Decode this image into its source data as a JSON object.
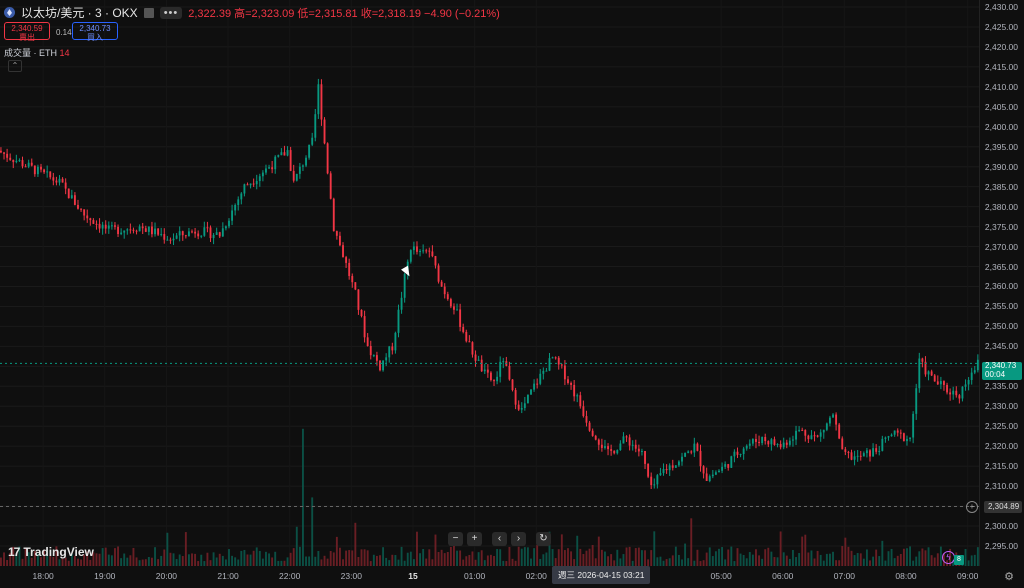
{
  "legend": {
    "symbol": "以太坊/美元 · 3 · OKX",
    "more": "•••",
    "ohlc_text": "2,322.39 高=2,323.09 低=2,315.81 收=2,318.19 −4.90 (−0.21%)"
  },
  "order": {
    "sell_price": "2,340.59",
    "sell_label": "賣出",
    "spread": "0.14",
    "buy_price": "2,340.73",
    "buy_label": "買入"
  },
  "volume_label": "成交量 · ETH",
  "volume_value": "14",
  "price_tag": {
    "price": "2,340.73",
    "countdown": "00:04"
  },
  "hover_price": "2,304.89",
  "crosshair_time": "週三 2026-04-15   03:21",
  "toolbar": {
    "zoom_out": "−",
    "zoom_in": "+",
    "scroll_left": "‹",
    "scroll_right": "›",
    "reset": "↻"
  },
  "brand": "TradingView",
  "volume_badge": "8",
  "colors": {
    "up": "#089981",
    "down": "#f23645",
    "background": "#0f0f0f"
  },
  "chart_data": {
    "type": "candlestick",
    "symbol": "ETH/USD",
    "interval_minutes": 3,
    "y_axis": {
      "ticks": [
        "2,430.00",
        "2,425.00",
        "2,420.00",
        "2,415.00",
        "2,410.00",
        "2,405.00",
        "2,400.00",
        "2,395.00",
        "2,390.00",
        "2,385.00",
        "2,380.00",
        "2,375.00",
        "2,370.00",
        "2,365.00",
        "2,360.00",
        "2,355.00",
        "2,350.00",
        "2,345.00",
        "2,340.00",
        "2,335.00",
        "2,330.00",
        "2,325.00",
        "2,320.00",
        "2,315.00",
        "2,310.00",
        "2,305.00",
        "2,300.00",
        "2,295.00"
      ],
      "range": [
        2295,
        2430
      ]
    },
    "x_axis": {
      "ticks": [
        "18:00",
        "19:00",
        "20:00",
        "21:00",
        "22:00",
        "23:00",
        "15",
        "01:00",
        "02:00",
        "05:00",
        "06:00",
        "07:00",
        "08:00",
        "09:00"
      ],
      "range_hours": [
        17.3,
        33.2
      ]
    },
    "close_path": [
      [
        17.3,
        2394
      ],
      [
        17.8,
        2390
      ],
      [
        18.3,
        2386
      ],
      [
        18.7,
        2378
      ],
      [
        19.1,
        2374
      ],
      [
        19.6,
        2375
      ],
      [
        20.1,
        2372
      ],
      [
        20.5,
        2374
      ],
      [
        20.9,
        2373
      ],
      [
        21.3,
        2385
      ],
      [
        21.7,
        2390
      ],
      [
        22.0,
        2394
      ],
      [
        22.1,
        2386
      ],
      [
        22.4,
        2396
      ],
      [
        22.5,
        2410
      ],
      [
        22.75,
        2375
      ],
      [
        22.9,
        2368
      ],
      [
        23.1,
        2358
      ],
      [
        23.3,
        2345
      ],
      [
        23.5,
        2340
      ],
      [
        23.7,
        2345
      ],
      [
        23.9,
        2362
      ],
      [
        24.0,
        2370
      ],
      [
        24.15,
        2368
      ],
      [
        24.3,
        2369
      ],
      [
        24.5,
        2360
      ],
      [
        24.7,
        2355
      ],
      [
        24.95,
        2345
      ],
      [
        25.2,
        2338
      ],
      [
        25.35,
        2336
      ],
      [
        25.5,
        2342
      ],
      [
        25.65,
        2333
      ],
      [
        25.8,
        2329
      ],
      [
        26.0,
        2335
      ],
      [
        26.2,
        2340
      ],
      [
        26.3,
        2342
      ],
      [
        26.5,
        2338
      ],
      [
        26.7,
        2332
      ],
      [
        26.9,
        2325
      ],
      [
        27.2,
        2318
      ],
      [
        27.5,
        2322
      ],
      [
        27.75,
        2318
      ],
      [
        27.9,
        2309
      ],
      [
        28.1,
        2314
      ],
      [
        28.4,
        2317
      ],
      [
        28.6,
        2320
      ],
      [
        28.8,
        2312
      ],
      [
        29.1,
        2315
      ],
      [
        29.4,
        2320
      ],
      [
        29.7,
        2322
      ],
      [
        30.0,
        2320
      ],
      [
        30.3,
        2324
      ],
      [
        30.6,
        2322
      ],
      [
        30.85,
        2328
      ],
      [
        31.0,
        2318
      ],
      [
        31.25,
        2317
      ],
      [
        31.55,
        2319
      ],
      [
        31.8,
        2323
      ],
      [
        32.1,
        2322
      ],
      [
        32.25,
        2341
      ],
      [
        32.45,
        2337
      ],
      [
        32.7,
        2334
      ],
      [
        32.9,
        2333
      ],
      [
        33.1,
        2339
      ],
      [
        33.2,
        2340.7
      ]
    ],
    "volume_spikes": [
      [
        22.1,
        8
      ],
      [
        22.2,
        28
      ],
      [
        22.35,
        14
      ],
      [
        24.05,
        7
      ],
      [
        26.2,
        7
      ],
      [
        27.0,
        6
      ],
      [
        30.3,
        6
      ],
      [
        32.2,
        3
      ]
    ],
    "last_price": 2340.73,
    "cursor_price": 2304.89
  }
}
